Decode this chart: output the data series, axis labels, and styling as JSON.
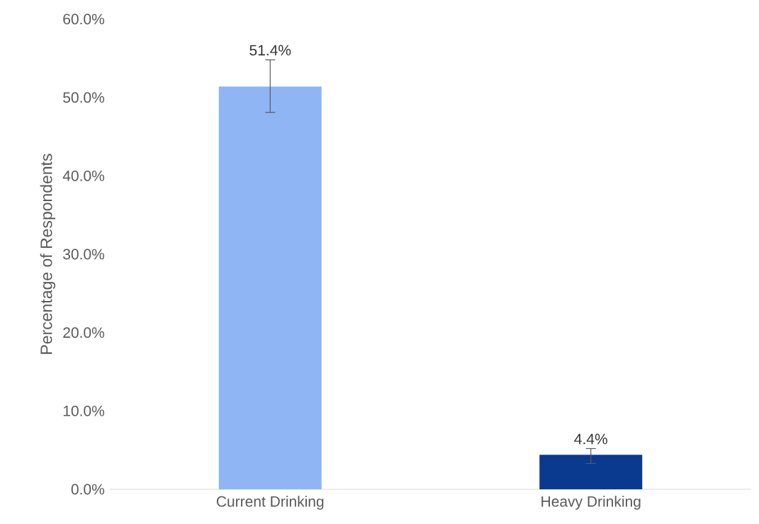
{
  "chart_data": {
    "type": "bar",
    "ylabel": "Percentage of Respondents",
    "categories": [
      "Current Drinking",
      "Heavy Drinking"
    ],
    "values": [
      51.4,
      4.4
    ],
    "colors": [
      "#8fb5f5",
      "#0a3a8f"
    ],
    "errors": [
      [
        48.1,
        54.8
      ],
      [
        3.3,
        5.2
      ]
    ],
    "value_labels": [
      "51.4%",
      "4.4%"
    ],
    "ylim": [
      0,
      60
    ],
    "yticks": [
      {
        "value": 0,
        "label": "0.0%"
      },
      {
        "value": 10,
        "label": "10.0%"
      },
      {
        "value": 20,
        "label": "20.0%"
      },
      {
        "value": 30,
        "label": "30.0%"
      },
      {
        "value": 40,
        "label": "40.0%"
      },
      {
        "value": 50,
        "label": "50.0%"
      },
      {
        "value": 60,
        "label": "60.0%"
      }
    ]
  }
}
